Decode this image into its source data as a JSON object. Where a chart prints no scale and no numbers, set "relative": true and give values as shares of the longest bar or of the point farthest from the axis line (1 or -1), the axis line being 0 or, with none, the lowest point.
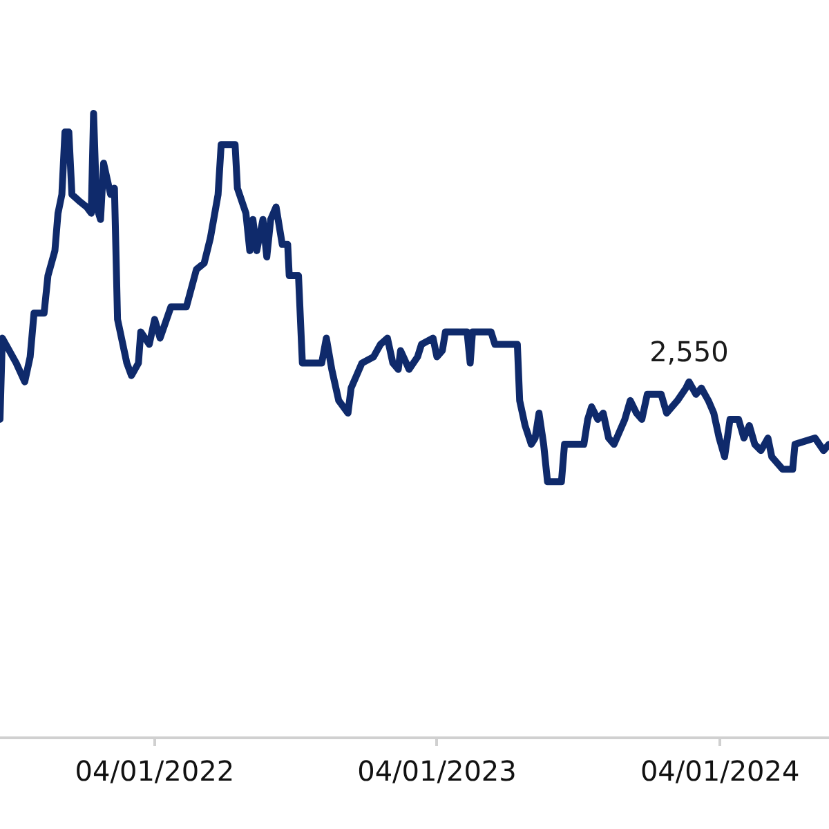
{
  "chart_data": {
    "type": "line",
    "relative": true,
    "marker": "none",
    "line_style": "solid",
    "xlim": [
      "2021-09-13",
      "2024-08-20"
    ],
    "xticks": [
      {
        "value": "2022-04-01",
        "label": "04/01/2022"
      },
      {
        "value": "2023-04-01",
        "label": "04/01/2023"
      },
      {
        "value": "2024-04-01",
        "label": "04/01/2024"
      }
    ],
    "annotations": [
      {
        "text": "2,550",
        "x": "2024-02-21",
        "y": 0.57
      }
    ],
    "x": [
      "2021-09-13",
      "2021-09-16",
      "2021-10-04",
      "2021-10-15",
      "2021-10-22",
      "2021-10-27",
      "2021-11-09",
      "2021-11-14",
      "2021-11-23",
      "2021-11-27",
      "2021-12-02",
      "2021-12-06",
      "2021-12-11",
      "2021-12-15",
      "2021-12-24",
      "2022-01-03",
      "2022-01-09",
      "2022-01-12",
      "2022-01-16",
      "2022-01-21",
      "2022-01-25",
      "2022-02-03",
      "2022-02-08",
      "2022-02-12",
      "2022-02-24",
      "2022-03-02",
      "2022-03-11",
      "2022-03-14",
      "2022-03-25",
      "2022-04-01",
      "2022-04-08",
      "2022-04-22",
      "2022-05-12",
      "2022-05-25",
      "2022-06-04",
      "2022-06-12",
      "2022-06-22",
      "2022-06-26",
      "2022-07-14",
      "2022-07-17",
      "2022-07-28",
      "2022-08-02",
      "2022-08-06",
      "2022-08-11",
      "2022-08-19",
      "2022-08-24",
      "2022-08-29",
      "2022-09-05",
      "2022-09-13",
      "2022-09-20",
      "2022-09-22",
      "2022-10-04",
      "2022-10-09",
      "2022-11-03",
      "2022-11-09",
      "2022-11-16",
      "2022-11-25",
      "2022-12-07",
      "2022-12-11",
      "2022-12-25",
      "2023-01-09",
      "2023-01-18",
      "2023-01-27",
      "2023-02-03",
      "2023-02-10",
      "2023-02-13",
      "2023-02-24",
      "2023-03-07",
      "2023-03-12",
      "2023-03-27",
      "2023-04-01",
      "2023-04-08",
      "2023-04-12",
      "2023-05-10",
      "2023-05-14",
      "2023-05-17",
      "2023-06-10",
      "2023-06-15",
      "2023-07-14",
      "2023-07-17",
      "2023-07-24",
      "2023-08-01",
      "2023-08-06",
      "2023-08-11",
      "2023-08-17",
      "2023-08-22",
      "2023-09-09",
      "2023-09-13",
      "2023-10-08",
      "2023-10-13",
      "2023-10-18",
      "2023-10-26",
      "2023-11-02",
      "2023-11-09",
      "2023-11-16",
      "2023-11-30",
      "2023-12-07",
      "2023-12-15",
      "2023-12-22",
      "2023-12-29",
      "2024-01-16",
      "2024-01-23",
      "2024-02-06",
      "2024-02-17",
      "2024-02-21",
      "2024-03-01",
      "2024-03-08",
      "2024-03-17",
      "2024-03-24",
      "2024-03-31",
      "2024-04-07",
      "2024-04-14",
      "2024-04-25",
      "2024-05-02",
      "2024-05-09",
      "2024-05-16",
      "2024-05-24",
      "2024-06-02",
      "2024-06-07",
      "2024-06-21",
      "2024-07-04",
      "2024-07-07",
      "2024-08-02",
      "2024-08-13",
      "2024-08-20"
    ],
    "series": [
      {
        "color": "#0f2a6b",
        "values": [
          0.51,
          0.64,
          0.6,
          0.57,
          0.61,
          0.68,
          0.68,
          0.74,
          0.78,
          0.84,
          0.87,
          0.97,
          0.97,
          0.87,
          0.86,
          0.85,
          0.84,
          1.0,
          0.85,
          0.83,
          0.92,
          0.87,
          0.88,
          0.67,
          0.6,
          0.58,
          0.6,
          0.65,
          0.63,
          0.67,
          0.64,
          0.69,
          0.69,
          0.75,
          0.76,
          0.8,
          0.87,
          0.95,
          0.95,
          0.88,
          0.84,
          0.78,
          0.83,
          0.78,
          0.83,
          0.77,
          0.83,
          0.85,
          0.79,
          0.79,
          0.74,
          0.74,
          0.6,
          0.6,
          0.64,
          0.59,
          0.54,
          0.52,
          0.56,
          0.6,
          0.61,
          0.63,
          0.64,
          0.6,
          0.59,
          0.62,
          0.59,
          0.61,
          0.63,
          0.64,
          0.61,
          0.62,
          0.65,
          0.65,
          0.6,
          0.65,
          0.65,
          0.63,
          0.63,
          0.54,
          0.5,
          0.47,
          0.48,
          0.52,
          0.47,
          0.41,
          0.41,
          0.47,
          0.47,
          0.51,
          0.53,
          0.51,
          0.52,
          0.48,
          0.47,
          0.51,
          0.54,
          0.52,
          0.51,
          0.55,
          0.55,
          0.52,
          0.54,
          0.56,
          0.57,
          0.55,
          0.56,
          0.54,
          0.52,
          0.48,
          0.45,
          0.51,
          0.51,
          0.48,
          0.5,
          0.47,
          0.46,
          0.48,
          0.45,
          0.43,
          0.43,
          0.47,
          0.48,
          0.46,
          0.47
        ]
      }
    ]
  }
}
